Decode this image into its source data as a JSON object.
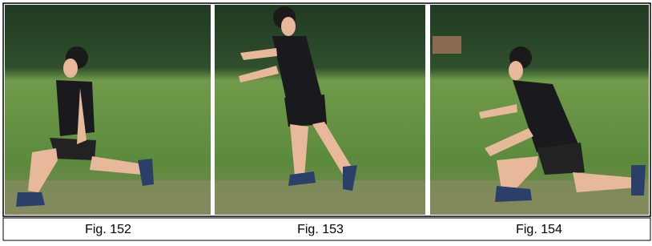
{
  "figures": [
    {
      "caption": "Fig. 152"
    },
    {
      "caption": "Fig. 153"
    },
    {
      "caption": "Fig. 154"
    }
  ]
}
